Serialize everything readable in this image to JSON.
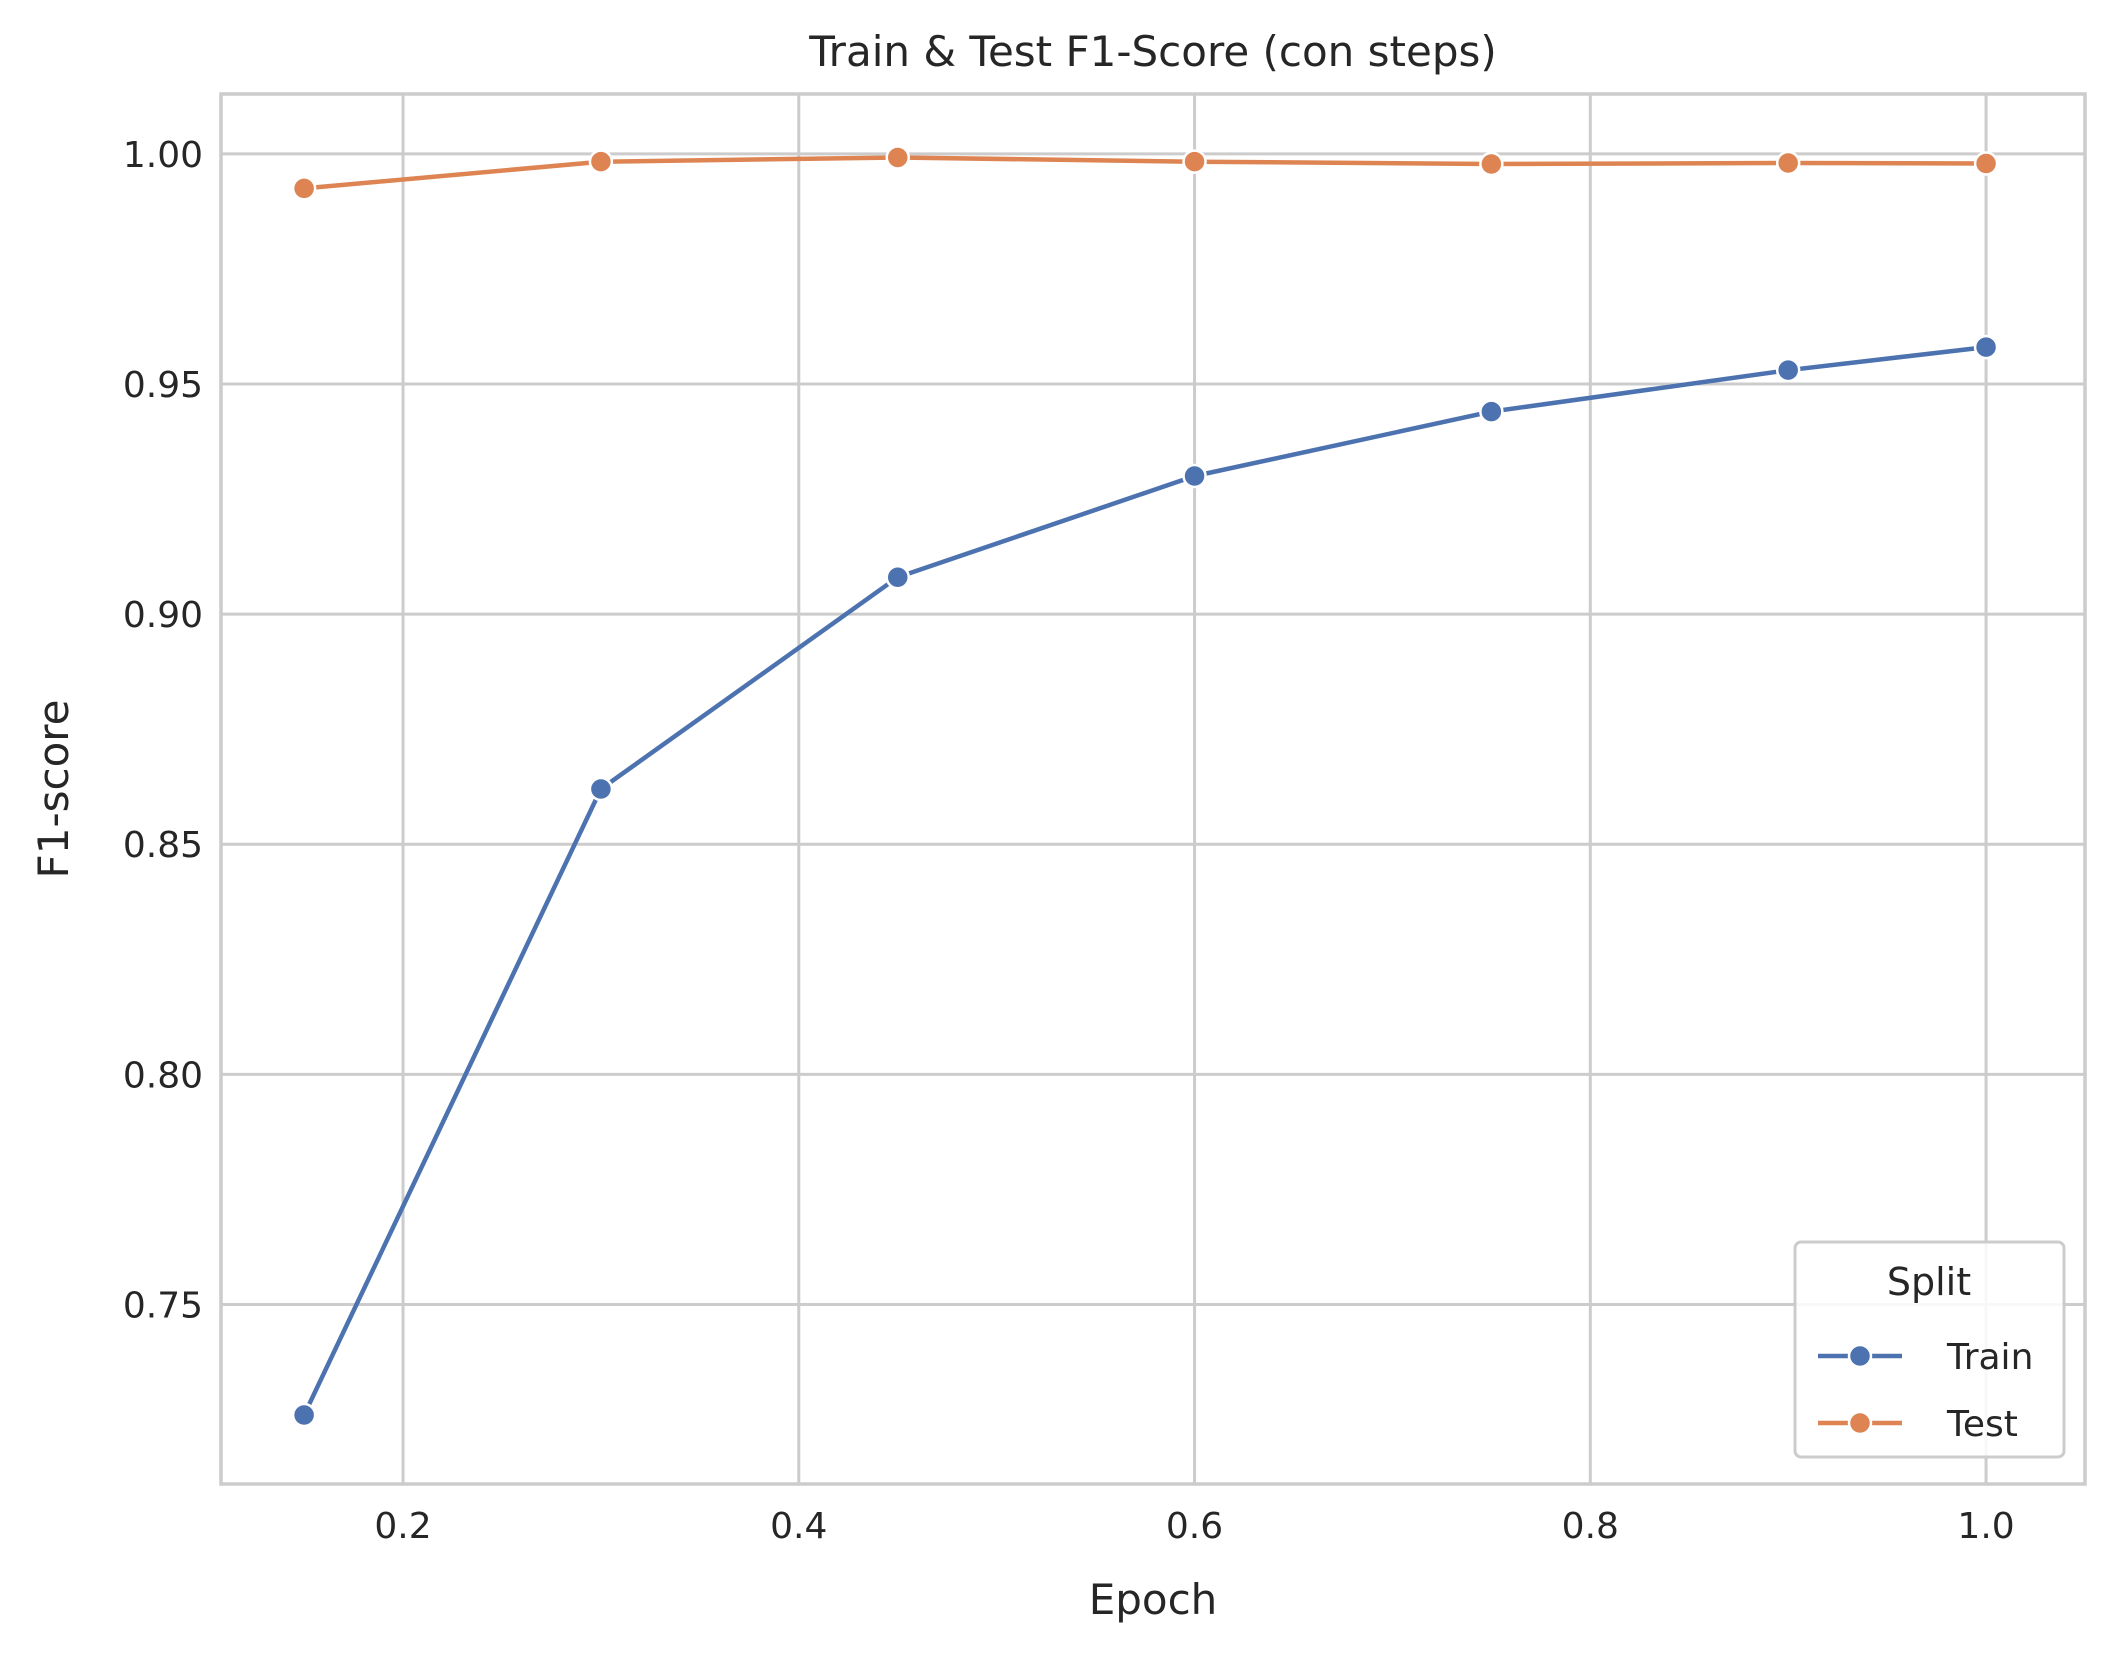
{
  "chart_data": {
    "type": "line",
    "title": "Train & Test F1-Score (con steps)",
    "xlabel": "Epoch",
    "ylabel": "F1-score",
    "xlim": [
      0.108,
      1.05
    ],
    "ylim": [
      0.711,
      1.013
    ],
    "xticks": [
      0.2,
      0.4,
      0.6,
      0.8,
      1.0
    ],
    "xtick_labels": [
      "0.2",
      "0.4",
      "0.6",
      "0.8",
      "1.0"
    ],
    "yticks": [
      0.75,
      0.8,
      0.85,
      0.9,
      0.95,
      1.0
    ],
    "ytick_labels": [
      "0.75",
      "0.80",
      "0.85",
      "0.90",
      "0.95",
      "1.00"
    ],
    "grid": true,
    "legend": {
      "title": "Split",
      "position": "lower-right"
    },
    "series": [
      {
        "name": "Train",
        "color": "#4c72b0",
        "marker": "circle",
        "x": [
          0.15,
          0.3,
          0.45,
          0.6,
          0.75,
          0.9,
          1.0
        ],
        "y": [
          0.726,
          0.862,
          0.908,
          0.93,
          0.944,
          0.953,
          0.958
        ]
      },
      {
        "name": "Test",
        "color": "#dd8452",
        "marker": "circle",
        "x": [
          0.15,
          0.3,
          0.45,
          0.6,
          0.75,
          0.9,
          1.0
        ],
        "y": [
          0.9925,
          0.9983,
          0.9992,
          0.9983,
          0.9978,
          0.998,
          0.9979
        ]
      }
    ]
  }
}
